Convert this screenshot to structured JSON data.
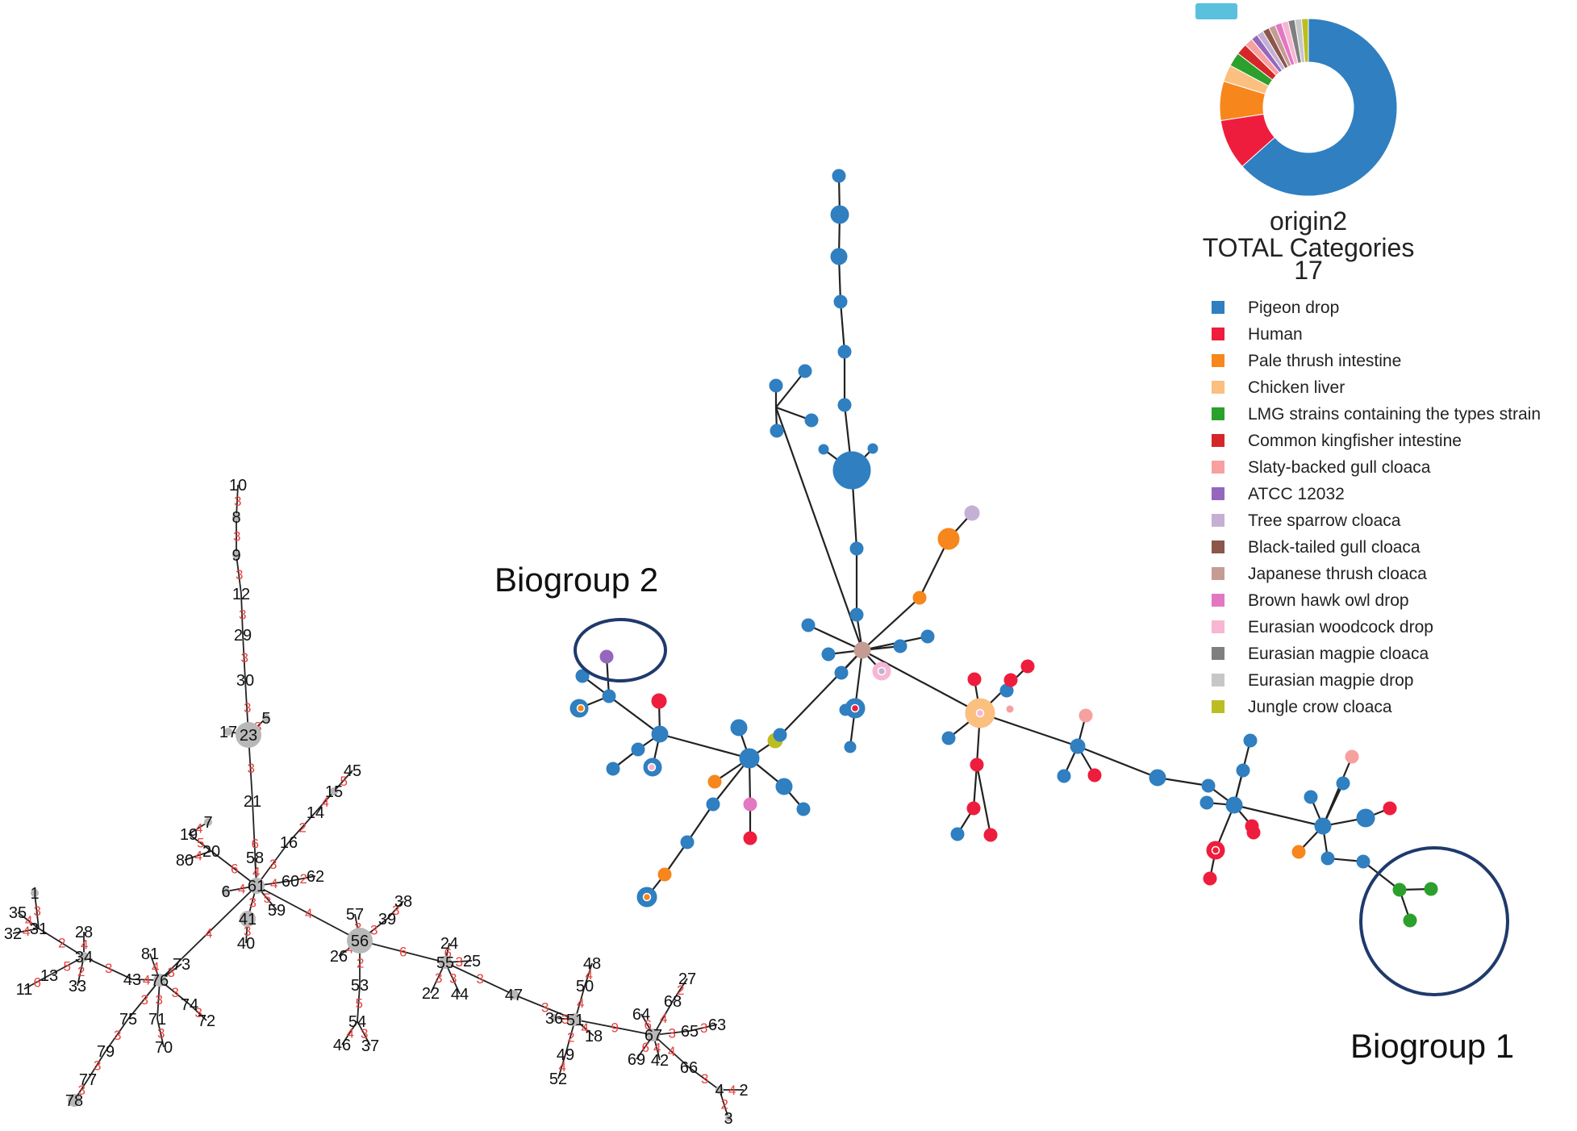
{
  "colors": {
    "Pigeon drop": "#2f7fc1",
    "Human": "#ef1d3d",
    "Pale thrush intestine": "#f7861c",
    "Chicken liver": "#fbbf80",
    "LMG strains containing the types strain": "#2ca02c",
    "Common kingfisher intestine": "#d62728",
    "Slaty-backed gull cloaca": "#f7a0a0",
    "ATCC 12032": "#9467bd",
    "Tree sparrow cloaca": "#c5b0d5",
    "Black-tailed gull cloaca": "#8c564b",
    "Japanese thrush cloaca": "#c49c94",
    "Brown hawk owl drop": "#e377c2",
    "Eurasian woodcock drop": "#f7b6d2",
    "Eurasian magpie cloaca": "#7f7f7f",
    "Eurasian magpie drop": "#c7c7c7",
    "Jungle crow cloaca": "#bcbd22",
    "gray": "#b8b8b8",
    "circle": "#1f3a6b"
  },
  "annotations": {
    "biogroup1": "Biogroup 1",
    "biogroup2": "Biogroup 2"
  },
  "legend": {
    "title": "origin2",
    "subtitle": "TOTAL Categories",
    "count": "17",
    "items": [
      "Pigeon drop",
      "Human",
      "Pale thrush intestine",
      "Chicken liver",
      "LMG strains containing the types strain",
      "Common kingfisher intestine",
      "Slaty-backed gull cloaca",
      "ATCC 12032",
      "Tree sparrow cloaca",
      "Black-tailed gull cloaca",
      "Japanese thrush cloaca",
      "Brown hawk owl drop",
      "Eurasian woodcock drop",
      "Eurasian magpie cloaca",
      "Eurasian magpie drop",
      "Jungle crow cloaca"
    ],
    "donut": [
      {
        "category": "Pigeon drop",
        "value": 0.62
      },
      {
        "category": "Human",
        "value": 0.09
      },
      {
        "category": "Pale thrush intestine",
        "value": 0.07
      },
      {
        "category": "Chicken liver",
        "value": 0.03
      },
      {
        "category": "LMG strains containing the types strain",
        "value": 0.025
      },
      {
        "category": "Common kingfisher intestine",
        "value": 0.02
      },
      {
        "category": "Slaty-backed gull cloaca",
        "value": 0.015
      },
      {
        "category": "ATCC 12032",
        "value": 0.012
      },
      {
        "category": "Tree sparrow cloaca",
        "value": 0.012
      },
      {
        "category": "Black-tailed gull cloaca",
        "value": 0.012
      },
      {
        "category": "Japanese thrush cloaca",
        "value": 0.012
      },
      {
        "category": "Brown hawk owl drop",
        "value": 0.012
      },
      {
        "category": "Eurasian woodcock drop",
        "value": 0.012
      },
      {
        "category": "Eurasian magpie cloaca",
        "value": 0.012
      },
      {
        "category": "Eurasian magpie drop",
        "value": 0.012
      },
      {
        "category": "Jungle crow cloaca",
        "value": 0.012
      }
    ]
  },
  "left_tree_labels": [
    "10",
    "8",
    "9",
    "12",
    "29",
    "30",
    "17",
    "23",
    "5",
    "21",
    "19",
    "7",
    "80",
    "20",
    "58",
    "16",
    "14",
    "15",
    "45",
    "60",
    "62",
    "6",
    "61",
    "59",
    "41",
    "40",
    "57",
    "38",
    "39",
    "56",
    "26",
    "53",
    "54",
    "46",
    "37",
    "24",
    "25",
    "55",
    "22",
    "44",
    "47",
    "48",
    "50",
    "36",
    "51",
    "18",
    "49",
    "52",
    "27",
    "68",
    "64",
    "67",
    "65",
    "63",
    "69",
    "42",
    "66",
    "4",
    "2",
    "3",
    "1",
    "35",
    "32",
    "31",
    "28",
    "34",
    "13",
    "11",
    "33",
    "81",
    "43",
    "76",
    "73",
    "74",
    "72",
    "75",
    "71",
    "70",
    "79",
    "77",
    "78"
  ],
  "left_tree_weights": [
    "3",
    "3",
    "3",
    "3",
    "3",
    "3",
    "3",
    "3",
    "3",
    "6",
    "4",
    "6",
    "5",
    "4",
    "4",
    "3",
    "2",
    "4",
    "5",
    "4",
    "2",
    "4",
    "5",
    "3",
    "3",
    "4",
    "3",
    "3",
    "3",
    "4",
    "2",
    "5",
    "4",
    "3",
    "6",
    "6",
    "3",
    "3",
    "3",
    "3",
    "3",
    "4",
    "4",
    "3",
    "4",
    "2",
    "4",
    "9",
    "4",
    "2",
    "6",
    "3",
    "3",
    "6",
    "4",
    "4",
    "3",
    "4",
    "2",
    "4",
    "3",
    "4",
    "4",
    "3",
    "4",
    "2",
    "3",
    "4",
    "4",
    "5",
    "6",
    "2"
  ]
}
